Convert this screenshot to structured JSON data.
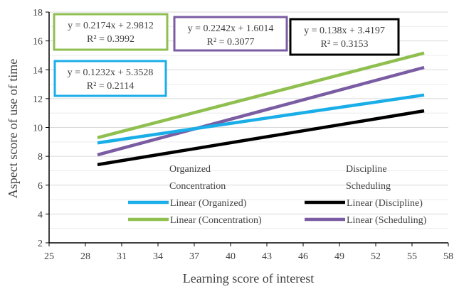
{
  "chart_data": {
    "type": "line",
    "title": "",
    "xlabel": "Learning score of interest",
    "ylabel": "Aspect score of use of time",
    "xlim": [
      25,
      58
    ],
    "ylim": [
      2,
      18
    ],
    "x_ticks": [
      25,
      28,
      31,
      34,
      37,
      40,
      43,
      46,
      49,
      52,
      55,
      58
    ],
    "y_ticks": [
      2,
      4,
      6,
      8,
      10,
      12,
      14,
      16,
      18
    ],
    "grid": "horizontal",
    "series": [
      {
        "name": "Linear (Organized)",
        "color": "#1aaee8",
        "x": [
          29,
          56
        ],
        "y": [
          8.93,
          12.25
        ],
        "equation": "y = 0.1232x + 5.3528",
        "r2": "R² = 0.2114"
      },
      {
        "name": "Linear (Concentration)",
        "color": "#8fbf4f",
        "x": [
          29,
          56
        ],
        "y": [
          9.29,
          15.16
        ],
        "equation": "y = 0.2174x + 2.9812",
        "r2": "R² = 0.3992"
      },
      {
        "name": "Linear (Discipline)",
        "color": "#000000",
        "x": [
          29,
          56
        ],
        "y": [
          7.42,
          11.15
        ],
        "equation": "y = 0.138x + 3.4197",
        "r2": "R² = 0.3153"
      },
      {
        "name": "Linear (Scheduling)",
        "color": "#7a5ca3",
        "x": [
          29,
          56
        ],
        "y": [
          8.1,
          14.16
        ],
        "equation": "y = 0.2242x + 1.6014",
        "r2": "R² = 0.3077"
      }
    ],
    "legend_text": [
      "Organized",
      "Concentration",
      "Discipline",
      "Scheduling"
    ]
  }
}
